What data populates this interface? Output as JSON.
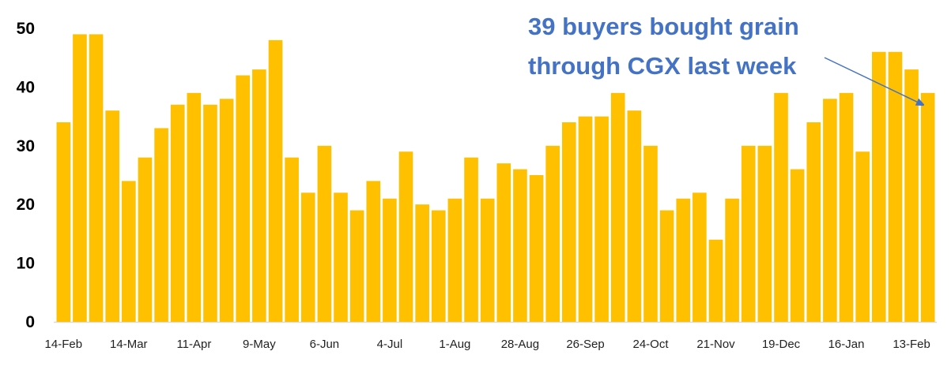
{
  "chart_data": {
    "type": "bar",
    "title": "",
    "xlabel": "",
    "ylabel": "",
    "ylim": [
      0,
      50
    ],
    "yticks": [
      0,
      10,
      20,
      30,
      40,
      50
    ],
    "grid": false,
    "legend": null,
    "bar_color": "#FFC000",
    "x_tick_labels": [
      "14-Feb",
      "14-Mar",
      "11-Apr",
      "9-May",
      "6-Jun",
      "4-Jul",
      "1-Aug",
      "28-Aug",
      "26-Sep",
      "24-Oct",
      "21-Nov",
      "19-Dec",
      "16-Jan",
      "13-Feb"
    ],
    "x_tick_every": 4,
    "values": [
      34,
      49,
      49,
      36,
      24,
      28,
      33,
      37,
      39,
      37,
      38,
      42,
      43,
      48,
      28,
      22,
      30,
      22,
      19,
      24,
      21,
      29,
      20,
      19,
      21,
      28,
      21,
      27,
      26,
      25,
      30,
      34,
      35,
      35,
      39,
      36,
      30,
      19,
      21,
      22,
      14,
      21,
      30,
      30,
      39,
      26,
      34,
      38,
      39,
      29,
      46,
      46,
      43,
      39
    ],
    "annotation": {
      "lines": [
        "39 buyers bought grain",
        "through CGX last week"
      ],
      "color": "#4472C4",
      "points_to_bar_index": 53
    }
  }
}
